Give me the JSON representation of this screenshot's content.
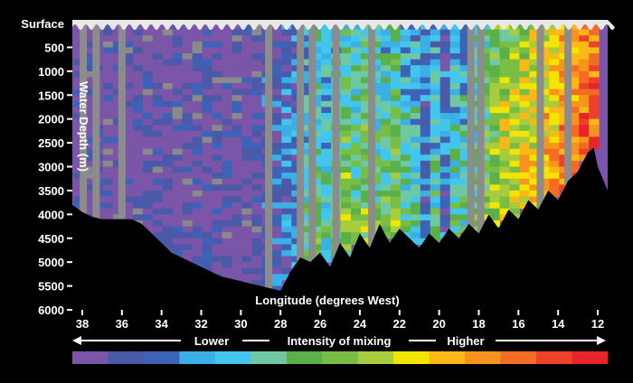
{
  "chart_data": {
    "type": "heatmap",
    "title": "",
    "xlabel": "Longitude (degrees West)",
    "ylabel": "Water Depth (m)",
    "x_ticks": [
      38,
      36,
      34,
      32,
      30,
      28,
      26,
      24,
      22,
      20,
      18,
      16,
      14,
      12
    ],
    "y_ticks": [
      "Surface",
      "500",
      "1000",
      "1500",
      "2000",
      "2500",
      "3000",
      "3500",
      "4000",
      "4500",
      "5000",
      "5500",
      "6000"
    ],
    "xlim": [
      38.5,
      11.5
    ],
    "ylim": [
      0,
      6000
    ],
    "colorbar": {
      "title": "Intensity of mixing",
      "low_label": "Lower",
      "high_label": "Higher",
      "colors": [
        "#7b55a8",
        "#4a5aa8",
        "#3d63b8",
        "#3ab0e6",
        "#43c6ee",
        "#6fc8a4",
        "#5bb04a",
        "#78be45",
        "#a7cc3d",
        "#f2e600",
        "#fbb816",
        "#f7941d",
        "#f26c23",
        "#ef4128",
        "#e8232a"
      ]
    },
    "seafloor_depth_profile": {
      "longitude": [
        38.5,
        38,
        37.5,
        37,
        36.5,
        36,
        35.5,
        35,
        34.5,
        34,
        33.5,
        33,
        32.5,
        32,
        31.5,
        31,
        30.5,
        30,
        29.5,
        29,
        28.5,
        28,
        27.5,
        27,
        26.5,
        26,
        25.5,
        25,
        24.5,
        24,
        23.5,
        23,
        22.5,
        22,
        21.5,
        21,
        20.5,
        20,
        19.5,
        19,
        18.5,
        18,
        17.5,
        17,
        16.5,
        16,
        15.5,
        15,
        14.5,
        14,
        13.5,
        13,
        12.5,
        12.2,
        12,
        11.7,
        11.5
      ],
      "depth": [
        3800,
        3950,
        4050,
        4100,
        4100,
        4100,
        4100,
        4200,
        4400,
        4600,
        4800,
        4900,
        5000,
        5100,
        5200,
        5300,
        5350,
        5400,
        5450,
        5500,
        5550,
        5600,
        5200,
        4900,
        5000,
        4800,
        5100,
        4600,
        4900,
        4400,
        4700,
        4200,
        4600,
        4300,
        4500,
        4700,
        4400,
        4600,
        4300,
        4500,
        4200,
        4400,
        4000,
        4300,
        3900,
        4100,
        3700,
        3900,
        3500,
        3700,
        3300,
        3100,
        2700,
        2600,
        3000,
        3300,
        3500
      ]
    },
    "mixing_profile": {
      "description_free": true,
      "column_longitudes": [
        38.2,
        37.7,
        37.2,
        36.7,
        36.2,
        35.7,
        35.2,
        34.7,
        34.2,
        33.7,
        33.2,
        32.7,
        32.2,
        31.7,
        31.2,
        30.7,
        30.2,
        29.7,
        29.2,
        28.7,
        28.2,
        27.7,
        27.2,
        26.7,
        26.2,
        25.7,
        25.2,
        24.7,
        24.2,
        23.7,
        23.2,
        22.7,
        22.2,
        21.7,
        21.2,
        20.7,
        20.2,
        19.7,
        19.2,
        18.7,
        18.2,
        17.7,
        17.2,
        16.7,
        16.2,
        15.7,
        15.2,
        14.7,
        14.2,
        13.7,
        13.2,
        12.7,
        12.2
      ],
      "column_mean_level": [
        0,
        0,
        0,
        0,
        0,
        0,
        0,
        0,
        0,
        0,
        0,
        0,
        0,
        0,
        0,
        0,
        0,
        0,
        0,
        1,
        1,
        2,
        2,
        3,
        4,
        3,
        4,
        5,
        4,
        5,
        4,
        4,
        5,
        3,
        3,
        2,
        3,
        2,
        3,
        3,
        4,
        5,
        6,
        7,
        7,
        8,
        8,
        9,
        9,
        10,
        10,
        11,
        11
      ],
      "max_level": 14
    }
  }
}
